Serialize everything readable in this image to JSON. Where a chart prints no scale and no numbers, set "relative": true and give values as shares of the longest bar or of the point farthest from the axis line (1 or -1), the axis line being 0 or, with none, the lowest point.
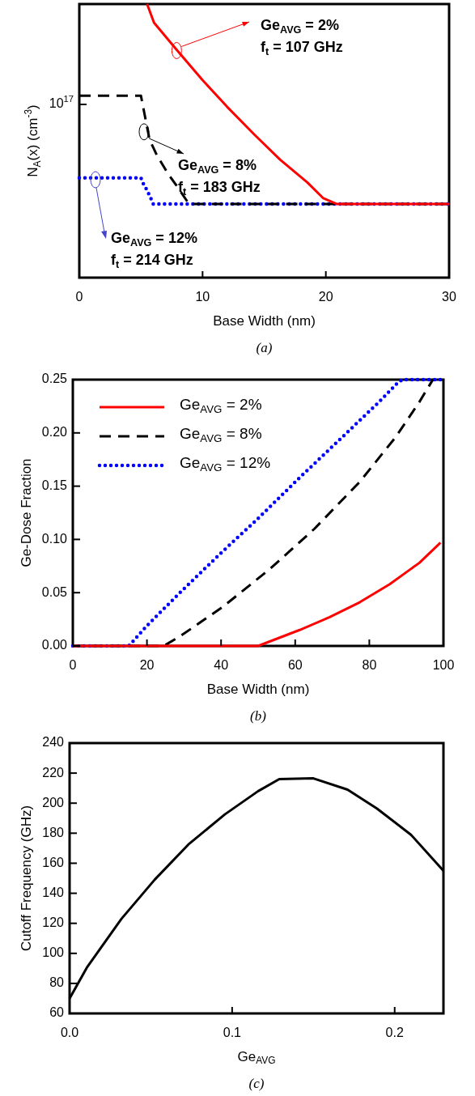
{
  "chart_data": [
    {
      "type": "line",
      "xlabel": "Base Width (nm)",
      "ylabel": "N$_{A}$(x) (cm$^{-3}$)",
      "relative": true,
      "grid": false,
      "legend": false,
      "xlim": [
        0,
        30
      ],
      "xticks": [
        0,
        10,
        20,
        30
      ],
      "series": [
        {
          "color": "#ff0000",
          "line_style": "solid",
          "x": [
            5.5,
            6.06,
            7.8,
            10,
            12,
            14.2,
            16.3,
            18.5,
            19.8,
            20.9,
            30
          ],
          "values": [
            1,
            0.932,
            0.838,
            0.722,
            0.624,
            0.523,
            0.431,
            0.348,
            0.29,
            0.269,
            0.269
          ]
        },
        {
          "color": "#000000",
          "line_style": "dashed",
          "x": [
            0,
            5,
            5.4,
            5.7,
            6.3,
            7.15,
            8,
            8.9,
            30
          ],
          "values": [
            0.665,
            0.665,
            0.573,
            0.504,
            0.447,
            0.383,
            0.329,
            0.269,
            0.269
          ]
        },
        {
          "color": "#0000ff",
          "line_style": "dotted",
          "x": [
            0,
            5,
            5.2,
            5.5,
            5.8,
            6,
            30
          ],
          "values": [
            0.365,
            0.365,
            0.343,
            0.319,
            0.29,
            0.269,
            0.269
          ]
        }
      ],
      "annotations": [
        "10$^{17}$",
        {
          "text": "Ge$_{AVG}$ = 2%",
          "x": 7.9,
          "y": 0.83
        },
        "f$_{t}$ = 107 GHz",
        {
          "text": "Ge$_{AVG}$ = 8%",
          "x": 5.25,
          "y": 0.533
        },
        "f$_{t}$ = 183 GHz",
        "Ge$_{AVG}$ = 12%",
        "f$_{t}$ = 214 GHz",
        "(a)"
      ]
    },
    {
      "type": "line",
      "xlabel": "Base Width (nm)",
      "ylabel": "Ge-Dose Fraction",
      "grid": false,
      "legend": "top left",
      "xlim": [
        0,
        100
      ],
      "xticks": [
        0,
        20,
        40,
        60,
        80,
        100
      ],
      "ylim": [
        0,
        0.25
      ],
      "yticks": [
        {
          "value": 0,
          "label": "0.00"
        },
        {
          "value": 0.05,
          "label": "0.05"
        },
        {
          "value": 0.1,
          "label": "0.10"
        },
        {
          "value": 0.15,
          "label": "0.15"
        },
        {
          "value": 0.2,
          "label": "0.20"
        },
        {
          "value": 0.25,
          "label": "0.25"
        }
      ],
      "series": [
        {
          "name": "Ge$_{AVG}$ = 2%",
          "color": "#ff0000",
          "line_style": "solid",
          "x": [
            0,
            50,
            61.2,
            69.3,
            77.4,
            85.5,
            93.5,
            99.2
          ],
          "values": [
            0,
            0,
            0.015,
            0.027,
            0.041,
            0.058,
            0.078,
            0.097
          ]
        },
        {
          "name": "Ge$_{AVG}$ = 8%",
          "color": "#000000",
          "line_style": "dashed",
          "x": [
            0,
            24.5,
            28.9,
            40.2,
            53.1,
            65.2,
            77.4,
            87.1,
            93.5,
            96.8,
            97.2
          ],
          "values": [
            0,
            0,
            0.009,
            0.036,
            0.072,
            0.11,
            0.154,
            0.196,
            0.229,
            0.248,
            0.25
          ]
        },
        {
          "name": "Ge$_{AVG}$ = 12%",
          "color": "#0000ff",
          "line_style": "dotted",
          "x": [
            0,
            15.1,
            20,
            28.9,
            40.2,
            49.5,
            61.2,
            73.3,
            82.6,
            87.9,
            89.1,
            100
          ],
          "values": [
            0,
            0,
            0.019,
            0.05,
            0.088,
            0.118,
            0.158,
            0.198,
            0.229,
            0.248,
            0.25,
            0.25
          ]
        }
      ],
      "annotations": [
        "(b)"
      ]
    },
    {
      "type": "line",
      "xlabel": "Ge$_{AVG}$",
      "ylabel": "Cutoff Frequency (GHz)",
      "grid": false,
      "legend": false,
      "xlim": [
        0,
        0.23
      ],
      "xticks": [
        {
          "value": 0,
          "label": "0.0"
        },
        0.1,
        0.2
      ],
      "ylim": [
        60,
        240
      ],
      "yticks": [
        60,
        80,
        100,
        120,
        140,
        160,
        180,
        200,
        220,
        240
      ],
      "series": [
        {
          "color": "#000000",
          "line_style": "solid",
          "x": [
            0,
            0.0106,
            0.0319,
            0.0523,
            0.0736,
            0.0955,
            0.116,
            0.129,
            0.15,
            0.171,
            0.189,
            0.21,
            0.23
          ],
          "values": [
            70,
            90.5,
            123,
            149,
            173,
            192.5,
            208,
            216,
            216.5,
            209,
            196.5,
            179,
            155
          ]
        }
      ],
      "annotations": [
        "(c)"
      ]
    }
  ]
}
